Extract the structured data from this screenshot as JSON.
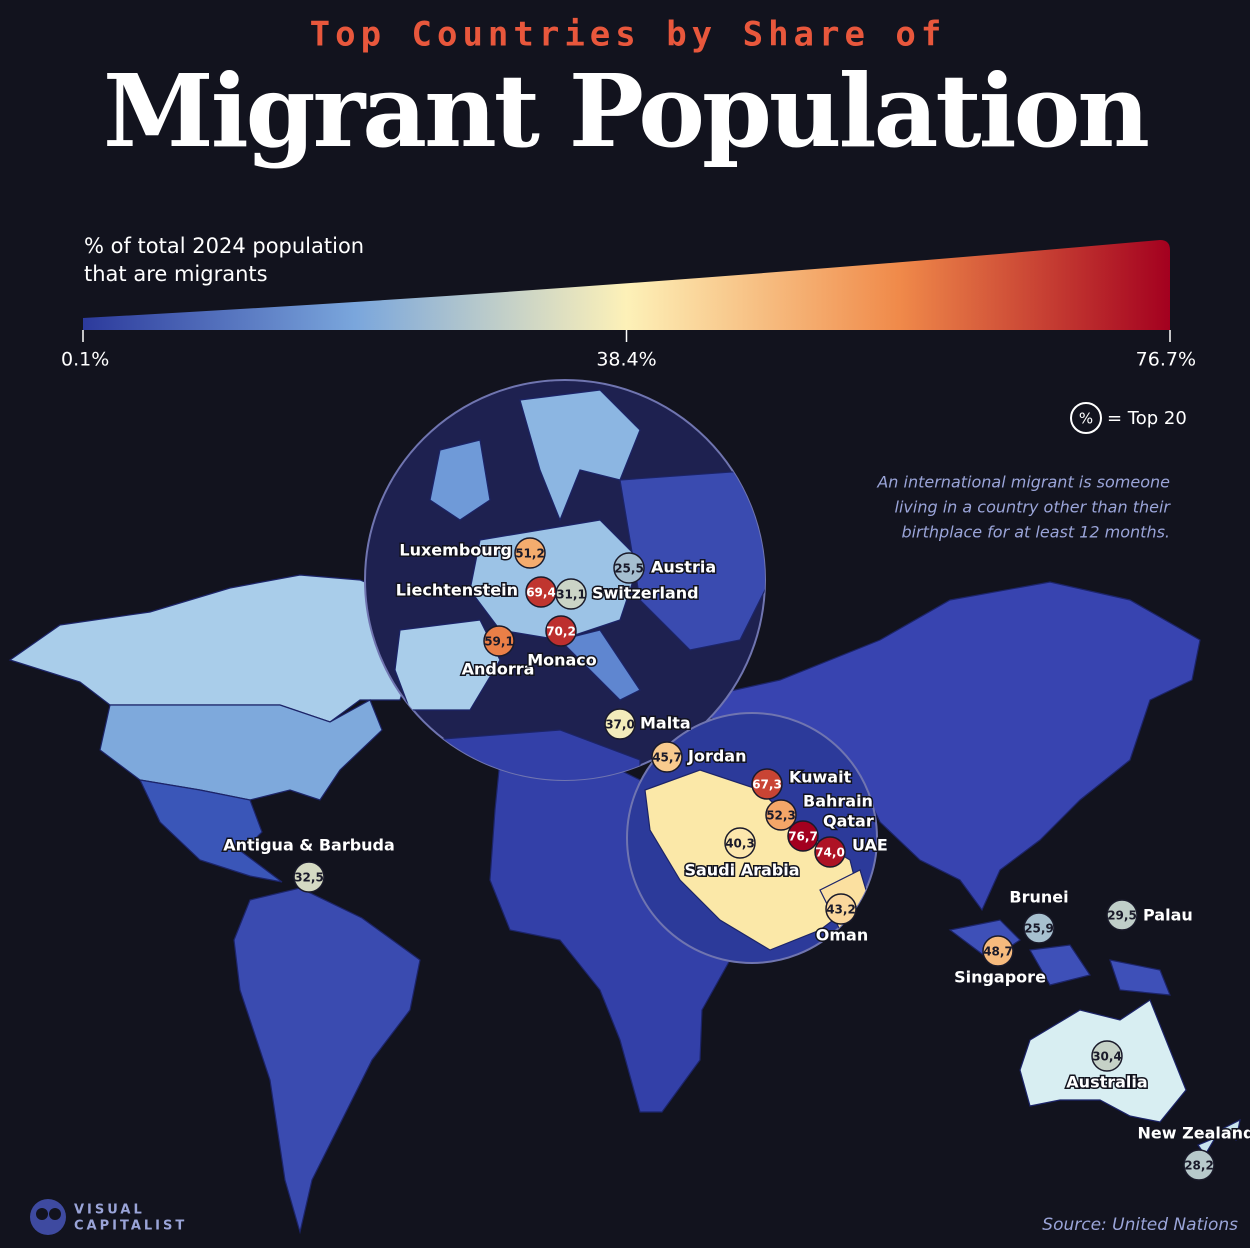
{
  "header": {
    "kicker": "Top Countries by Share of",
    "title": "Migrant Population"
  },
  "legend": {
    "label_lines": [
      "% of total 2024 population",
      "that are migrants"
    ],
    "ticks": [
      {
        "value": 0.1,
        "label": "0.1%"
      },
      {
        "value": 38.4,
        "label": "38.4%"
      },
      {
        "value": 76.7,
        "label": "76.7%"
      }
    ],
    "colors": [
      "#2c3a9c",
      "#7aa6dc",
      "#fdf1b8",
      "#f08a4a",
      "#a3001f"
    ],
    "top20_symbol": "%",
    "top20_text": "= Top 20"
  },
  "note": [
    "An international migrant is someone",
    "living in a country other than their",
    "birthplace for at least 12 months."
  ],
  "countries": [
    {
      "name": "Luxembourg",
      "value": 51.2,
      "label": "51,2"
    },
    {
      "name": "Austria",
      "value": 25.5,
      "label": "25,5"
    },
    {
      "name": "Liechtenstein",
      "value": 69.4,
      "label": "69,4"
    },
    {
      "name": "Switzerland",
      "value": 31.1,
      "label": "31,1"
    },
    {
      "name": "Andorra",
      "value": 59.1,
      "label": "59,1"
    },
    {
      "name": "Monaco",
      "value": 70.2,
      "label": "70,2"
    },
    {
      "name": "Malta",
      "value": 37.0,
      "label": "37,0"
    },
    {
      "name": "Jordan",
      "value": 45.7,
      "label": "45,7"
    },
    {
      "name": "Kuwait",
      "value": 67.3,
      "label": "67,3"
    },
    {
      "name": "Bahrain",
      "value": 52.3,
      "label": "52,3"
    },
    {
      "name": "Qatar",
      "value": 76.7,
      "label": "76,7"
    },
    {
      "name": "UAE",
      "value": 74.0,
      "label": "74,0"
    },
    {
      "name": "Saudi Arabia",
      "value": 40.3,
      "label": "40,3"
    },
    {
      "name": "Oman",
      "value": 43.2,
      "label": "43,2"
    },
    {
      "name": "Antigua & Barbuda",
      "value": 32.5,
      "label": "32,5"
    },
    {
      "name": "Brunei",
      "value": 25.9,
      "label": "25,9"
    },
    {
      "name": "Palau",
      "value": 29.5,
      "label": "29,5"
    },
    {
      "name": "Singapore",
      "value": 48.7,
      "label": "48,7"
    },
    {
      "name": "Australia",
      "value": 30.4,
      "label": "30,4"
    },
    {
      "name": "New Zealand",
      "value": 28.2,
      "label": "28,2"
    }
  ],
  "source": "Source: United Nations",
  "brand": [
    "VISUAL",
    "CAPITALIST"
  ]
}
